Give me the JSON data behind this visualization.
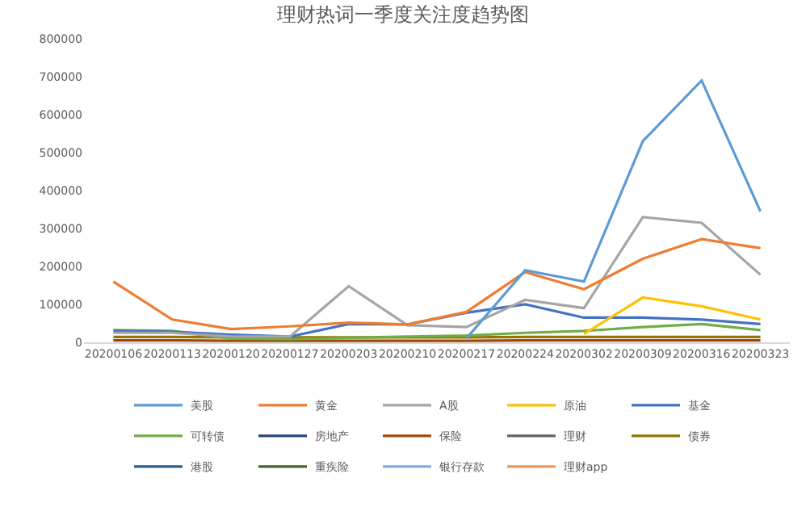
{
  "chart_data": {
    "type": "line",
    "title": "理财热词一季度关注度趋势图",
    "categories": [
      "20200106",
      "20200113",
      "20200120",
      "20200127",
      "20200203",
      "20200210",
      "20200217",
      "20200224",
      "20200302",
      "20200309",
      "20200316",
      "20200323"
    ],
    "series": [
      {
        "name": "美股",
        "color": "#5b9bd5",
        "values": [
          null,
          null,
          null,
          null,
          null,
          null,
          10000,
          190000,
          160000,
          530000,
          690000,
          345000
        ]
      },
      {
        "name": "黄金",
        "color": "#ed7d31",
        "values": [
          160000,
          60000,
          35000,
          42000,
          52000,
          47000,
          80000,
          185000,
          140000,
          220000,
          272000,
          248000
        ]
      },
      {
        "name": "A股",
        "color": "#a5a5a5",
        "values": [
          25000,
          25000,
          15000,
          15000,
          148000,
          45000,
          40000,
          112000,
          90000,
          330000,
          315000,
          178000
        ]
      },
      {
        "name": "原油",
        "color": "#ffc000",
        "values": [
          null,
          null,
          null,
          null,
          null,
          null,
          null,
          null,
          22000,
          118000,
          95000,
          60000
        ]
      },
      {
        "name": "基金",
        "color": "#4472c4",
        "values": [
          30000,
          28000,
          20000,
          15000,
          48000,
          47000,
          78000,
          100000,
          65000,
          65000,
          60000,
          48000
        ]
      },
      {
        "name": "可转债",
        "color": "#70ad47",
        "values": [
          32000,
          30000,
          10000,
          8000,
          12000,
          15000,
          18000,
          25000,
          30000,
          40000,
          48000,
          32000
        ]
      },
      {
        "name": "房地产",
        "color": "#264478",
        "values": [
          null,
          null,
          null,
          null,
          null,
          null,
          null,
          null,
          null,
          null,
          null,
          null
        ]
      },
      {
        "name": "保险",
        "color": "#9e480e",
        "values": [
          5000,
          5000,
          4000,
          4000,
          4000,
          4000,
          4000,
          5000,
          5000,
          5000,
          5000,
          5000
        ]
      },
      {
        "name": "理财",
        "color": "#636363",
        "values": [
          null,
          null,
          null,
          null,
          null,
          null,
          null,
          null,
          null,
          null,
          null,
          null
        ]
      },
      {
        "name": "债券",
        "color": "#997300",
        "values": [
          14000,
          14000,
          13000,
          13000,
          13000,
          13000,
          13000,
          14000,
          14000,
          14000,
          14000,
          14000
        ]
      },
      {
        "name": "港股",
        "color": "#255e91",
        "values": [
          null,
          null,
          null,
          null,
          null,
          null,
          null,
          null,
          null,
          null,
          null,
          null
        ]
      },
      {
        "name": "重疾险",
        "color": "#43682b",
        "values": [
          null,
          null,
          null,
          null,
          null,
          null,
          null,
          null,
          null,
          null,
          null,
          null
        ]
      },
      {
        "name": "银行存款",
        "color": "#7cafdd",
        "values": [
          null,
          null,
          null,
          null,
          null,
          null,
          null,
          null,
          null,
          null,
          null,
          null
        ]
      },
      {
        "name": "理财app",
        "color": "#f1975a",
        "values": [
          null,
          null,
          null,
          null,
          null,
          null,
          null,
          null,
          null,
          null,
          null,
          null
        ]
      }
    ],
    "ylim": [
      0,
      800000
    ],
    "yticks": [
      0,
      100000,
      200000,
      300000,
      400000,
      500000,
      600000,
      700000,
      800000
    ],
    "grid": false,
    "legend": "bottom",
    "marker": "none",
    "line_style": "solid"
  }
}
